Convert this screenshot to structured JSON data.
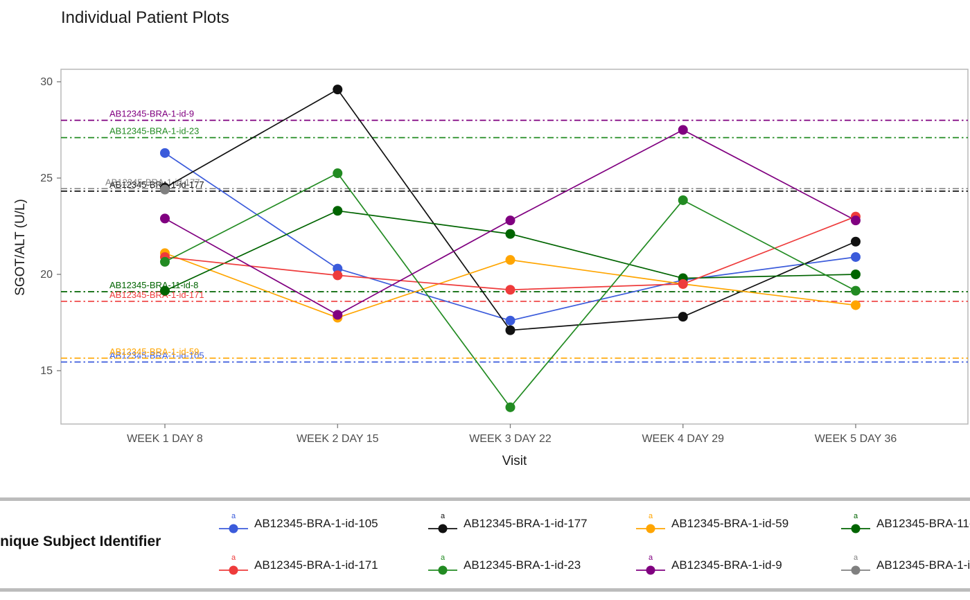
{
  "chart_data": {
    "type": "line",
    "title": "Individual Patient Plots",
    "xlabel": "Visit",
    "ylabel": "SGOT/ALT (U/L)",
    "x_categories": [
      "WEEK 1 DAY 8",
      "WEEK 2 DAY 15",
      "WEEK 3 DAY 22",
      "WEEK 4 DAY 29",
      "WEEK 5 DAY 36"
    ],
    "yticks": [
      15,
      20,
      25,
      30
    ],
    "ylim": [
      12.2,
      30.7
    ],
    "grid": false,
    "legend_position": "bottom",
    "legend_title": "Unique Subject Identifier",
    "series": [
      {
        "name": "AB12345-BRA-1-id-105",
        "color": "#3b5bdb",
        "values": [
          26.3,
          20.3,
          17.6,
          19.7,
          20.9
        ],
        "baseline": 15.45
      },
      {
        "name": "AB12345-BRA-1-id-177",
        "color": "#111111",
        "values": [
          24.5,
          29.6,
          17.1,
          17.8,
          21.7
        ],
        "baseline": 24.32
      },
      {
        "name": "AB12345-BRA-1-id-59",
        "color": "#FFA500",
        "values": [
          21.1,
          17.75,
          20.75,
          19.5,
          18.4
        ],
        "baseline": 15.65
      },
      {
        "name": "AB12345-BRA-11-id-8",
        "color": "#006400",
        "values": [
          19.15,
          23.3,
          22.1,
          19.8,
          20.0
        ],
        "baseline": 19.1
      },
      {
        "name": "AB12345-BRA-1-id-171",
        "color": "#EE3B3B",
        "values": [
          20.9,
          19.95,
          19.2,
          19.5,
          23.0
        ],
        "baseline": 18.6
      },
      {
        "name": "AB12345-BRA-1-id-23",
        "color": "#228B22",
        "values": [
          20.65,
          25.25,
          13.1,
          23.85,
          19.15
        ],
        "baseline": 27.1
      },
      {
        "name": "AB12345-BRA-1-id-9",
        "color": "#800080",
        "values": [
          22.9,
          17.9,
          22.8,
          27.5,
          22.8
        ],
        "baseline": 28.0
      },
      {
        "name": "AB12345-BRA-1-id-177",
        "color": "#808080",
        "values": [
          24.4,
          null,
          null,
          null,
          null
        ],
        "baseline": 24.45
      }
    ],
    "legend_rows": [
      [
        0,
        1,
        2,
        3
      ],
      [
        4,
        5,
        6,
        7
      ]
    ]
  }
}
